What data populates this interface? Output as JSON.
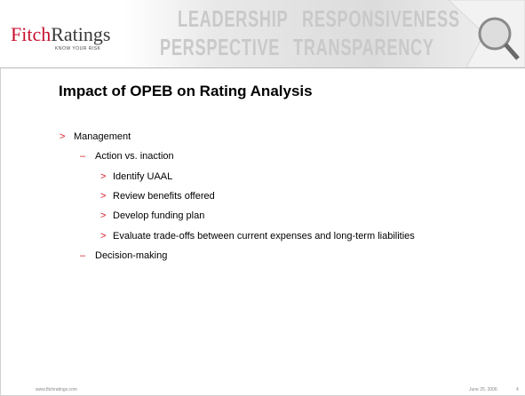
{
  "header": {
    "logo_primary": "Fitch",
    "logo_secondary": "Ratings",
    "tagline": "KNOW YOUR RISK",
    "banner_words": [
      "LEADERSHIP",
      "RESPONSIVENESS",
      "PERSPECTIVE",
      "TRANSPARENCY"
    ]
  },
  "title": "Impact of OPEB on Rating Analysis",
  "bullets": [
    {
      "marker": ">",
      "text": "Management",
      "children": [
        {
          "marker": "–",
          "text": "Action vs. inaction",
          "children": [
            {
              "marker": ">",
              "text": "Identify UAAL"
            },
            {
              "marker": ">",
              "text": "Review benefits offered"
            },
            {
              "marker": ">",
              "text": "Develop funding plan"
            },
            {
              "marker": ">",
              "text": "Evaluate trade-offs between current expenses and long-term liabilities"
            }
          ]
        },
        {
          "marker": "–",
          "text": "Decision-making"
        }
      ]
    }
  ],
  "footer": {
    "url": "www.fitchratings.com",
    "date": "June 25, 2006",
    "page": "4"
  }
}
